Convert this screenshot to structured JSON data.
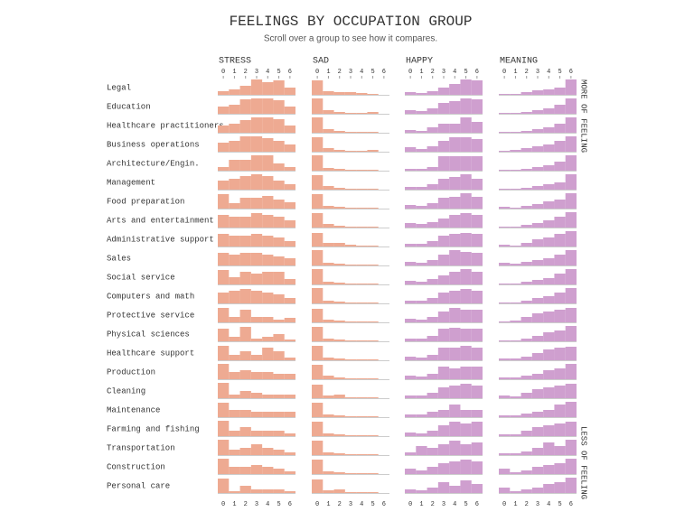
{
  "chart_data": {
    "type": "histogram-grid",
    "title": "FEELINGS BY OCCUPATION GROUP",
    "subtitle": "Scroll over a group to see how it compares.",
    "bins": [
      0,
      1,
      2,
      3,
      4,
      5,
      6
    ],
    "ylim": [
      0,
      18
    ],
    "feelings": [
      {
        "name": "STRESS",
        "color": "#eeaa92"
      },
      {
        "name": "SAD",
        "color": "#eeaa92"
      },
      {
        "name": "HAPPY",
        "color": "#cf9fcf"
      },
      {
        "name": "MEANING",
        "color": "#cf9fcf"
      }
    ],
    "top_note": "MORE OF FEELING",
    "bottom_note": "LESS OF FEELING",
    "groups": [
      {
        "name": "Legal",
        "values": [
          [
            4,
            6,
            10,
            17,
            14,
            16,
            8
          ],
          [
            16,
            4,
            3,
            3,
            2,
            1,
            0
          ],
          [
            3,
            2,
            4,
            8,
            12,
            17,
            16
          ],
          [
            1,
            1,
            3,
            5,
            6,
            8,
            17
          ]
        ]
      },
      {
        "name": "Education",
        "values": [
          [
            8,
            10,
            16,
            17,
            17,
            15,
            8
          ],
          [
            17,
            4,
            2,
            1,
            1,
            2,
            0
          ],
          [
            4,
            3,
            6,
            12,
            14,
            17,
            16
          ],
          [
            1,
            1,
            2,
            4,
            6,
            10,
            17
          ]
        ]
      },
      {
        "name": "Healthcare practitioners",
        "values": [
          [
            8,
            10,
            14,
            17,
            17,
            15,
            8
          ],
          [
            17,
            4,
            2,
            1,
            1,
            1,
            0
          ],
          [
            3,
            2,
            6,
            10,
            10,
            17,
            12
          ],
          [
            1,
            1,
            2,
            4,
            6,
            10,
            17
          ]
        ]
      },
      {
        "name": "Business operations",
        "values": [
          [
            10,
            12,
            17,
            17,
            15,
            12,
            8
          ],
          [
            16,
            4,
            2,
            1,
            1,
            2,
            0
          ],
          [
            5,
            3,
            6,
            12,
            16,
            16,
            14
          ],
          [
            1,
            2,
            4,
            6,
            8,
            12,
            17
          ]
        ]
      },
      {
        "name": "Architecture/Engin.",
        "values": [
          [
            4,
            12,
            12,
            17,
            17,
            8,
            4
          ],
          [
            17,
            3,
            2,
            1,
            1,
            1,
            0
          ],
          [
            2,
            2,
            4,
            16,
            16,
            16,
            16
          ],
          [
            1,
            1,
            2,
            4,
            6,
            10,
            17
          ]
        ]
      },
      {
        "name": "Management",
        "values": [
          [
            10,
            12,
            15,
            17,
            15,
            10,
            6
          ],
          [
            16,
            4,
            2,
            1,
            1,
            1,
            0
          ],
          [
            3,
            3,
            6,
            12,
            14,
            17,
            12
          ],
          [
            1,
            1,
            2,
            4,
            6,
            8,
            17
          ]
        ]
      },
      {
        "name": "Food preparation",
        "values": [
          [
            16,
            6,
            12,
            12,
            14,
            10,
            7
          ],
          [
            16,
            3,
            2,
            1,
            1,
            1,
            0
          ],
          [
            4,
            3,
            6,
            12,
            13,
            17,
            13
          ],
          [
            2,
            1,
            3,
            5,
            8,
            10,
            17
          ]
        ]
      },
      {
        "name": "Arts and entertainment",
        "values": [
          [
            14,
            12,
            12,
            16,
            14,
            12,
            8
          ],
          [
            16,
            4,
            2,
            1,
            1,
            1,
            0
          ],
          [
            5,
            4,
            6,
            10,
            14,
            16,
            14
          ],
          [
            1,
            1,
            3,
            5,
            8,
            12,
            17
          ]
        ]
      },
      {
        "name": "Administrative support",
        "values": [
          [
            14,
            12,
            12,
            14,
            12,
            10,
            6
          ],
          [
            15,
            4,
            4,
            2,
            1,
            1,
            0
          ],
          [
            3,
            3,
            6,
            12,
            14,
            15,
            14
          ],
          [
            2,
            1,
            4,
            8,
            10,
            14,
            17
          ]
        ]
      },
      {
        "name": "Sales",
        "values": [
          [
            14,
            12,
            14,
            14,
            12,
            10,
            8
          ],
          [
            17,
            3,
            2,
            1,
            1,
            1,
            0
          ],
          [
            4,
            3,
            6,
            12,
            17,
            15,
            14
          ],
          [
            3,
            2,
            4,
            6,
            8,
            12,
            17
          ]
        ]
      },
      {
        "name": "Social service",
        "values": [
          [
            16,
            8,
            14,
            12,
            14,
            14,
            6
          ],
          [
            17,
            3,
            2,
            1,
            1,
            1,
            0
          ],
          [
            4,
            3,
            6,
            10,
            14,
            17,
            14
          ],
          [
            1,
            1,
            3,
            5,
            7,
            12,
            17
          ]
        ]
      },
      {
        "name": "Computers and math",
        "values": [
          [
            12,
            14,
            16,
            14,
            12,
            10,
            6
          ],
          [
            17,
            3,
            2,
            1,
            1,
            1,
            0
          ],
          [
            3,
            3,
            6,
            12,
            14,
            16,
            14
          ],
          [
            1,
            1,
            3,
            6,
            8,
            12,
            17
          ]
        ]
      },
      {
        "name": "Protective service",
        "values": [
          [
            16,
            6,
            14,
            6,
            6,
            3,
            5
          ],
          [
            15,
            3,
            2,
            1,
            1,
            1,
            0
          ],
          [
            4,
            3,
            6,
            12,
            16,
            14,
            14
          ],
          [
            1,
            2,
            6,
            10,
            12,
            14,
            16
          ]
        ]
      },
      {
        "name": "Physical sciences",
        "values": [
          [
            14,
            5,
            16,
            3,
            5,
            8,
            2
          ],
          [
            16,
            3,
            2,
            1,
            1,
            1,
            0
          ],
          [
            3,
            3,
            6,
            14,
            15,
            14,
            14
          ],
          [
            1,
            1,
            3,
            6,
            10,
            12,
            17
          ]
        ]
      },
      {
        "name": "Healthcare support",
        "values": [
          [
            16,
            6,
            10,
            6,
            14,
            10,
            3
          ],
          [
            16,
            3,
            2,
            1,
            1,
            1,
            0
          ],
          [
            4,
            3,
            6,
            14,
            14,
            16,
            14
          ],
          [
            2,
            2,
            4,
            8,
            12,
            14,
            15
          ]
        ]
      },
      {
        "name": "Production",
        "values": [
          [
            17,
            8,
            10,
            8,
            8,
            6,
            6
          ],
          [
            16,
            4,
            2,
            1,
            1,
            1,
            0
          ],
          [
            4,
            3,
            6,
            14,
            12,
            14,
            14
          ],
          [
            2,
            2,
            4,
            6,
            10,
            12,
            17
          ]
        ]
      },
      {
        "name": "Cleaning",
        "values": [
          [
            17,
            4,
            8,
            6,
            4,
            4,
            4
          ],
          [
            15,
            3,
            4,
            1,
            1,
            1,
            0
          ],
          [
            3,
            3,
            6,
            12,
            14,
            16,
            14
          ],
          [
            3,
            2,
            6,
            10,
            12,
            14,
            16
          ]
        ]
      },
      {
        "name": "Maintenance",
        "values": [
          [
            16,
            8,
            8,
            6,
            6,
            6,
            6
          ],
          [
            16,
            3,
            2,
            1,
            1,
            1,
            0
          ],
          [
            3,
            3,
            6,
            8,
            14,
            8,
            8
          ],
          [
            2,
            2,
            4,
            6,
            8,
            14,
            17
          ]
        ]
      },
      {
        "name": "Farming and fishing",
        "values": [
          [
            17,
            6,
            10,
            6,
            6,
            6,
            3
          ],
          [
            16,
            3,
            2,
            1,
            1,
            1,
            0
          ],
          [
            4,
            3,
            6,
            12,
            16,
            14,
            16
          ],
          [
            2,
            2,
            6,
            10,
            12,
            14,
            16
          ]
        ]
      },
      {
        "name": "Transportation",
        "values": [
          [
            17,
            6,
            8,
            12,
            8,
            6,
            3
          ],
          [
            16,
            3,
            2,
            1,
            1,
            1,
            0
          ],
          [
            3,
            10,
            8,
            12,
            16,
            12,
            14
          ],
          [
            2,
            2,
            4,
            8,
            14,
            10,
            17
          ]
        ]
      },
      {
        "name": "Construction",
        "values": [
          [
            17,
            8,
            8,
            10,
            8,
            6,
            3
          ],
          [
            16,
            3,
            2,
            1,
            1,
            1,
            0
          ],
          [
            6,
            4,
            8,
            12,
            14,
            16,
            14
          ],
          [
            6,
            2,
            4,
            8,
            10,
            12,
            17
          ]
        ]
      },
      {
        "name": "Personal care",
        "values": [
          [
            16,
            2,
            8,
            4,
            4,
            4,
            2
          ],
          [
            15,
            3,
            4,
            1,
            1,
            1,
            0
          ],
          [
            4,
            3,
            6,
            12,
            8,
            14,
            10
          ],
          [
            6,
            2,
            4,
            6,
            10,
            12,
            17
          ]
        ]
      }
    ]
  }
}
